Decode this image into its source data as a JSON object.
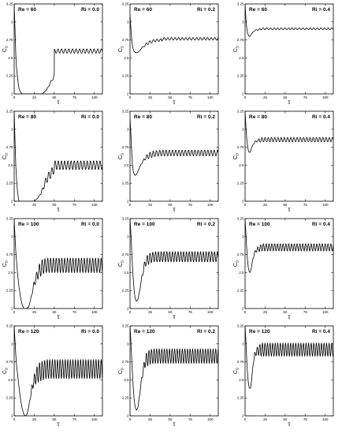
{
  "figure": {
    "shared_axes": {
      "type": "line",
      "xlabel": "τ",
      "ylabel_main": "C",
      "ylabel_sub": "D",
      "xlim": [
        0,
        110
      ],
      "ylim": [
        2.0,
        3.25
      ],
      "x_ticks": [
        0,
        25,
        50,
        75,
        100
      ],
      "x_tick_labels": [
        "0",
        "25",
        "50",
        "75",
        "100"
      ],
      "y_ticks": [
        2.0,
        2.25,
        2.5,
        2.75,
        3.0,
        3.25
      ],
      "y_tick_labels": [
        "2",
        "2.25",
        "2.5",
        "2.75",
        "3",
        "3.25"
      ],
      "grid": false,
      "line_color": "#000000"
    }
  },
  "chart_data": [
    {
      "type": "line",
      "panel": [
        0,
        0
      ],
      "re_label": "Re = 60",
      "ri_label": "Ri = 0.0",
      "x": [
        0,
        1,
        2,
        3,
        4,
        5,
        6,
        8,
        10,
        12,
        15,
        20,
        25,
        30,
        35,
        40,
        50
      ],
      "y": [
        3.25,
        2.9,
        2.55,
        2.35,
        2.25,
        2.15,
        2.08,
        2.02,
        2.0,
        2.0,
        2.0,
        2.0,
        2.0,
        2.0,
        2.0,
        2.05,
        2.25
      ],
      "steady_value": 2.595,
      "oscillation_amplitude": 0.03,
      "oscillation_period": 4.5,
      "oscillation_start": 40
    },
    {
      "type": "line",
      "panel": [
        0,
        1
      ],
      "re_label": "Re = 60",
      "ri_label": "Ri = 0.2",
      "x": [
        0,
        1,
        2,
        3,
        4,
        5,
        6,
        8,
        10,
        12,
        14,
        17,
        20,
        25,
        30,
        40
      ],
      "y": [
        3.1,
        2.92,
        2.77,
        2.67,
        2.62,
        2.59,
        2.58,
        2.57,
        2.58,
        2.6,
        2.63,
        2.66,
        2.69,
        2.72,
        2.74,
        2.75
      ],
      "steady_value": 2.765,
      "oscillation_amplitude": 0.018,
      "oscillation_period": 4.5,
      "oscillation_start": 10
    },
    {
      "type": "line",
      "panel": [
        0,
        2
      ],
      "re_label": "Re = 60",
      "ri_label": "Ri = 0.4",
      "x": [
        0,
        1,
        2,
        3,
        4,
        5,
        6,
        8,
        10,
        12,
        15,
        20
      ],
      "y": [
        3.25,
        3.05,
        2.92,
        2.85,
        2.82,
        2.8,
        2.8,
        2.83,
        2.86,
        2.88,
        2.89,
        2.9
      ],
      "steady_value": 2.905,
      "oscillation_amplitude": 0.012,
      "oscillation_period": 4.5,
      "oscillation_start": 8
    },
    {
      "type": "line",
      "panel": [
        1,
        0
      ],
      "re_label": "Re = 80",
      "ri_label": "Ri = 0.0",
      "x": [
        0,
        1,
        2,
        3,
        4,
        5,
        6,
        8,
        10,
        12,
        15,
        20,
        25,
        30,
        35,
        40,
        50
      ],
      "y": [
        3.25,
        2.85,
        2.5,
        2.3,
        2.15,
        2.06,
        2.0,
        2.0,
        2.0,
        2.0,
        2.0,
        2.0,
        2.0,
        2.05,
        2.15,
        2.3,
        2.45
      ],
      "steady_value": 2.5,
      "oscillation_amplitude": 0.06,
      "oscillation_period": 4.0,
      "oscillation_start": 30
    },
    {
      "type": "line",
      "panel": [
        1,
        1
      ],
      "re_label": "Re = 80",
      "ri_label": "Ri = 0.2",
      "x": [
        0,
        1,
        2,
        3,
        4,
        5,
        6,
        8,
        10,
        12,
        14,
        17,
        20,
        25,
        30,
        40
      ],
      "y": [
        3.15,
        2.95,
        2.7,
        2.52,
        2.42,
        2.38,
        2.36,
        2.37,
        2.42,
        2.47,
        2.52,
        2.57,
        2.61,
        2.64,
        2.66,
        2.67
      ],
      "steady_value": 2.67,
      "oscillation_amplitude": 0.04,
      "oscillation_period": 4.0,
      "oscillation_start": 12
    },
    {
      "type": "line",
      "panel": [
        1,
        2
      ],
      "re_label": "Re = 80",
      "ri_label": "Ri = 0.4",
      "x": [
        0,
        1,
        2,
        3,
        4,
        5,
        6,
        7,
        8,
        10,
        12,
        15,
        20
      ],
      "y": [
        3.25,
        3.05,
        2.88,
        2.78,
        2.71,
        2.68,
        2.68,
        2.7,
        2.74,
        2.79,
        2.82,
        2.84,
        2.85
      ],
      "steady_value": 2.855,
      "oscillation_amplitude": 0.03,
      "oscillation_period": 4.0,
      "oscillation_start": 8
    },
    {
      "type": "line",
      "panel": [
        2,
        0
      ],
      "re_label": "Re = 100",
      "ri_label": "Ri = 0.0",
      "x": [
        0,
        1,
        2,
        3,
        4,
        5,
        6,
        8,
        10,
        12,
        15,
        18,
        20,
        22,
        25,
        30,
        35,
        40
      ],
      "y": [
        3.25,
        3.0,
        2.8,
        2.65,
        2.52,
        2.4,
        2.3,
        2.15,
        2.05,
        2.0,
        2.0,
        2.02,
        2.1,
        2.2,
        2.35,
        2.5,
        2.58,
        2.6
      ],
      "steady_value": 2.6,
      "oscillation_amplitude": 0.1,
      "oscillation_period": 3.5,
      "oscillation_start": 20
    },
    {
      "type": "line",
      "panel": [
        2,
        1
      ],
      "re_label": "Re = 100",
      "ri_label": "Ri = 0.2",
      "x": [
        0,
        1,
        2,
        3,
        4,
        5,
        6,
        7,
        8,
        10,
        12,
        15,
        18,
        20,
        25,
        30
      ],
      "y": [
        3.25,
        3.05,
        2.82,
        2.6,
        2.42,
        2.27,
        2.17,
        2.12,
        2.1,
        2.13,
        2.25,
        2.45,
        2.6,
        2.66,
        2.7,
        2.72
      ],
      "steady_value": 2.72,
      "oscillation_amplitude": 0.07,
      "oscillation_period": 3.5,
      "oscillation_start": 10
    },
    {
      "type": "line",
      "panel": [
        2,
        2
      ],
      "re_label": "Re = 100",
      "ri_label": "Ri = 0.4",
      "x": [
        0,
        1,
        2,
        3,
        4,
        5,
        6,
        7,
        8,
        10,
        12,
        15,
        20
      ],
      "y": [
        3.25,
        3.05,
        2.85,
        2.68,
        2.57,
        2.52,
        2.5,
        2.52,
        2.58,
        2.7,
        2.78,
        2.82,
        2.84
      ],
      "steady_value": 2.85,
      "oscillation_amplitude": 0.05,
      "oscillation_period": 3.5,
      "oscillation_start": 8
    },
    {
      "type": "line",
      "panel": [
        3,
        0
      ],
      "re_label": "Re = 120",
      "ri_label": "Ri = 0.0",
      "x": [
        0,
        1,
        2,
        3,
        4,
        5,
        6,
        8,
        10,
        12,
        14,
        16,
        18,
        20,
        22,
        25,
        30,
        40
      ],
      "y": [
        3.25,
        3.05,
        2.85,
        2.7,
        2.6,
        2.5,
        2.4,
        2.22,
        2.1,
        2.02,
        2.0,
        2.02,
        2.12,
        2.25,
        2.38,
        2.5,
        2.6,
        2.65
      ],
      "steady_value": 2.65,
      "oscillation_amplitude": 0.13,
      "oscillation_period": 3.2,
      "oscillation_start": 18
    },
    {
      "type": "line",
      "panel": [
        3,
        1
      ],
      "re_label": "Re = 120",
      "ri_label": "Ri = 0.2",
      "x": [
        0,
        1,
        2,
        3,
        4,
        5,
        6,
        7,
        8,
        10,
        12,
        15,
        18,
        20,
        25,
        30
      ],
      "y": [
        3.25,
        3.05,
        2.82,
        2.6,
        2.4,
        2.25,
        2.15,
        2.1,
        2.08,
        2.12,
        2.3,
        2.55,
        2.72,
        2.78,
        2.82,
        2.83
      ],
      "steady_value": 2.83,
      "oscillation_amplitude": 0.1,
      "oscillation_period": 3.2,
      "oscillation_start": 10
    },
    {
      "type": "line",
      "panel": [
        3,
        2
      ],
      "re_label": "Re = 120",
      "ri_label": "Ri = 0.4",
      "x": [
        0,
        1,
        2,
        3,
        4,
        5,
        6,
        7,
        8,
        9,
        10,
        12,
        15,
        20
      ],
      "y": [
        3.25,
        3.05,
        2.8,
        2.6,
        2.47,
        2.4,
        2.38,
        2.4,
        2.48,
        2.6,
        2.72,
        2.85,
        2.9,
        2.92
      ],
      "steady_value": 2.92,
      "oscillation_amplitude": 0.09,
      "oscillation_period": 3.2,
      "oscillation_start": 8
    }
  ]
}
